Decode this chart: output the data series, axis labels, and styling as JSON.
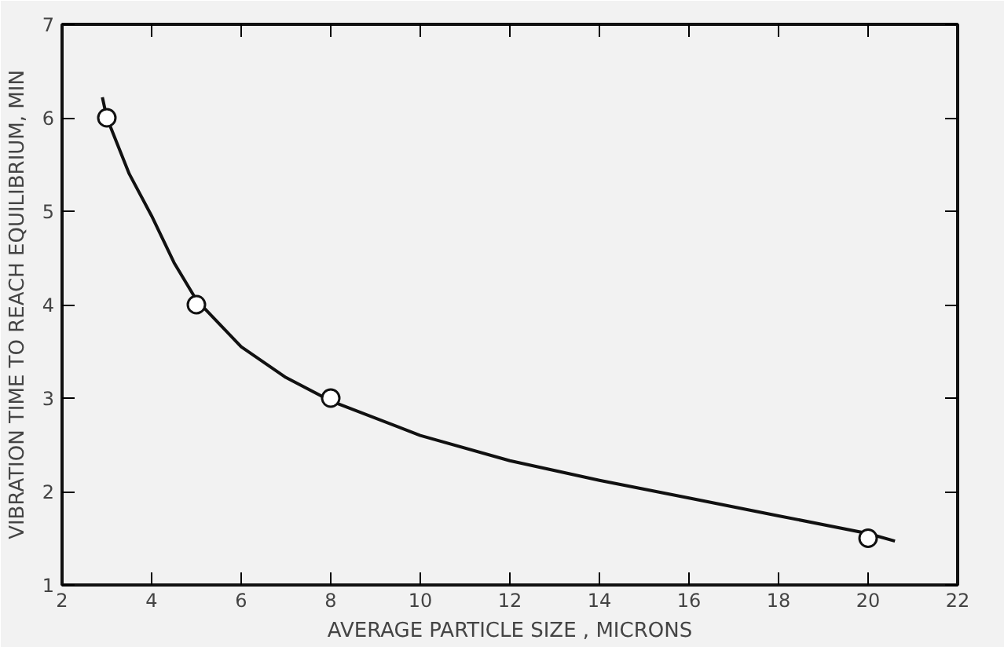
{
  "chart_data": {
    "type": "scatter",
    "xlabel": "AVERAGE PARTICLE SIZE , MICRONS",
    "ylabel": "VIBRATION TIME TO REACH EQUILIBRIUM, MIN",
    "xlim": [
      2,
      22
    ],
    "ylim": [
      1,
      7
    ],
    "xticks": [
      2,
      4,
      6,
      8,
      10,
      12,
      14,
      16,
      18,
      20,
      22
    ],
    "yticks": [
      1,
      2,
      3,
      4,
      5,
      6,
      7
    ],
    "grid": false,
    "marker": "circle",
    "series": [
      {
        "type": "line",
        "marker": "none",
        "color": "#111111",
        "x": [
          2.9,
          3,
          3.5,
          4,
          4.5,
          5,
          6,
          7,
          8,
          10,
          12,
          14,
          16,
          18,
          20,
          20.6
        ],
        "values": [
          6.22,
          6,
          5.4,
          4.95,
          4.45,
          4.05,
          3.55,
          3.22,
          2.97,
          2.6,
          2.33,
          2.12,
          1.93,
          1.74,
          1.55,
          1.47
        ]
      },
      {
        "color": "#111111",
        "x": [
          3,
          5,
          8,
          20
        ],
        "values": [
          6,
          4,
          3,
          1.5
        ]
      }
    ]
  }
}
